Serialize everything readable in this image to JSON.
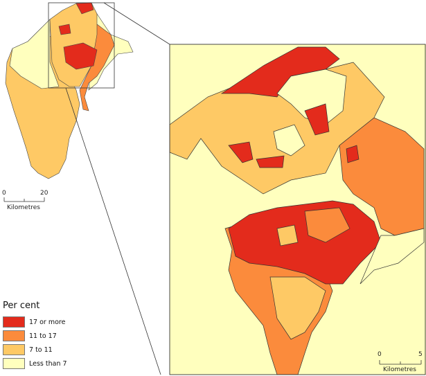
{
  "legend": {
    "title": "Per cent",
    "items": [
      {
        "label": "17 or more",
        "color": "#e32b1c"
      },
      {
        "label": "11 to 17",
        "color": "#fb8b3c"
      },
      {
        "label": "7 to 11",
        "color": "#fec965"
      },
      {
        "label": "Less than 7",
        "color": "#ffffbe"
      }
    ]
  },
  "overview_scale": {
    "start": "0",
    "end": "20",
    "unit": "Kilometres"
  },
  "detail_scale": {
    "start": "0",
    "end": "5",
    "unit": "Kilometres"
  }
}
